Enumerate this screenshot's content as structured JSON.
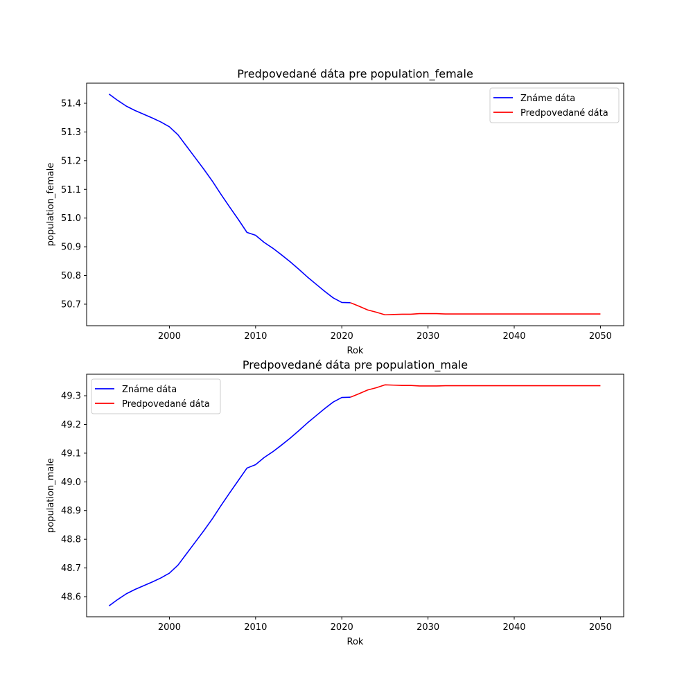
{
  "colors": {
    "known": "#0000ff",
    "predicted": "#ff0000",
    "axes": "#000000",
    "background": "#ffffff"
  },
  "chart_data": [
    {
      "type": "line",
      "title": "Predpovedané dáta pre population_female",
      "xlabel": "Rok",
      "ylabel": "population_female",
      "xlim": [
        1990.4,
        2052.7
      ],
      "ylim": [
        50.625,
        51.47
      ],
      "xticks": [
        2000,
        2010,
        2020,
        2030,
        2040,
        2050
      ],
      "yticks": [
        50.7,
        50.8,
        50.9,
        51.0,
        51.1,
        51.2,
        51.3,
        51.4
      ],
      "ytick_labels": [
        "50.7",
        "50.8",
        "50.9",
        "51.0",
        "51.1",
        "51.2",
        "51.3",
        "51.4"
      ],
      "legend_position": "upper right",
      "grid": false,
      "series": [
        {
          "name": "Známe dáta",
          "color": "#0000ff",
          "x": [
            1993,
            1994,
            1995,
            1996,
            1997,
            1998,
            1999,
            2000,
            2001,
            2002,
            2003,
            2004,
            2005,
            2006,
            2007,
            2008,
            2009,
            2010,
            2011,
            2012,
            2013,
            2014,
            2015,
            2016,
            2017,
            2018,
            2019,
            2020,
            2021
          ],
          "y": [
            51.432,
            51.41,
            51.39,
            51.375,
            51.362,
            51.349,
            51.335,
            51.318,
            51.29,
            51.25,
            51.21,
            51.17,
            51.128,
            51.082,
            51.038,
            50.995,
            50.95,
            50.94,
            50.915,
            50.895,
            50.872,
            50.848,
            50.822,
            50.795,
            50.77,
            50.745,
            50.722,
            50.706,
            50.705
          ]
        },
        {
          "name": "Predpovedané dáta",
          "color": "#ff0000",
          "x": [
            2021,
            2022,
            2023,
            2024,
            2025,
            2026,
            2027,
            2028,
            2029,
            2030,
            2031,
            2032,
            2035,
            2040,
            2045,
            2050
          ],
          "y": [
            50.705,
            50.693,
            50.68,
            50.672,
            50.663,
            50.664,
            50.665,
            50.665,
            50.667,
            50.667,
            50.667,
            50.666,
            50.666,
            50.666,
            50.666,
            50.666
          ]
        }
      ]
    },
    {
      "type": "line",
      "title": "Predpovedané dáta pre population_male",
      "xlabel": "Rok",
      "ylabel": "population_male",
      "xlim": [
        1990.4,
        2052.7
      ],
      "ylim": [
        48.53,
        49.375
      ],
      "xticks": [
        2000,
        2010,
        2020,
        2030,
        2040,
        2050
      ],
      "yticks": [
        48.6,
        48.7,
        48.8,
        48.9,
        49.0,
        49.1,
        49.2,
        49.3
      ],
      "ytick_labels": [
        "48.6",
        "48.7",
        "48.8",
        "48.9",
        "49.0",
        "49.1",
        "49.2",
        "49.3"
      ],
      "legend_position": "upper left",
      "grid": false,
      "series": [
        {
          "name": "Známe dáta",
          "color": "#0000ff",
          "x": [
            1993,
            1994,
            1995,
            1996,
            1997,
            1998,
            1999,
            2000,
            2001,
            2002,
            2003,
            2004,
            2005,
            2006,
            2007,
            2008,
            2009,
            2010,
            2011,
            2012,
            2013,
            2014,
            2015,
            2016,
            2017,
            2018,
            2019,
            2020,
            2021
          ],
          "y": [
            48.568,
            48.59,
            48.61,
            48.625,
            48.638,
            48.651,
            48.665,
            48.682,
            48.71,
            48.75,
            48.79,
            48.83,
            48.872,
            48.918,
            48.962,
            49.005,
            49.048,
            49.06,
            49.085,
            49.105,
            49.128,
            49.152,
            49.178,
            49.205,
            49.23,
            49.255,
            49.278,
            49.294,
            49.295
          ]
        },
        {
          "name": "Predpovedané dáta",
          "color": "#ff0000",
          "x": [
            2021,
            2022,
            2023,
            2024,
            2025,
            2026,
            2027,
            2028,
            2029,
            2030,
            2031,
            2032,
            2035,
            2040,
            2045,
            2050
          ],
          "y": [
            49.295,
            49.307,
            49.32,
            49.328,
            49.338,
            49.337,
            49.336,
            49.336,
            49.334,
            49.334,
            49.334,
            49.335,
            49.335,
            49.335,
            49.335,
            49.335
          ]
        }
      ]
    }
  ]
}
